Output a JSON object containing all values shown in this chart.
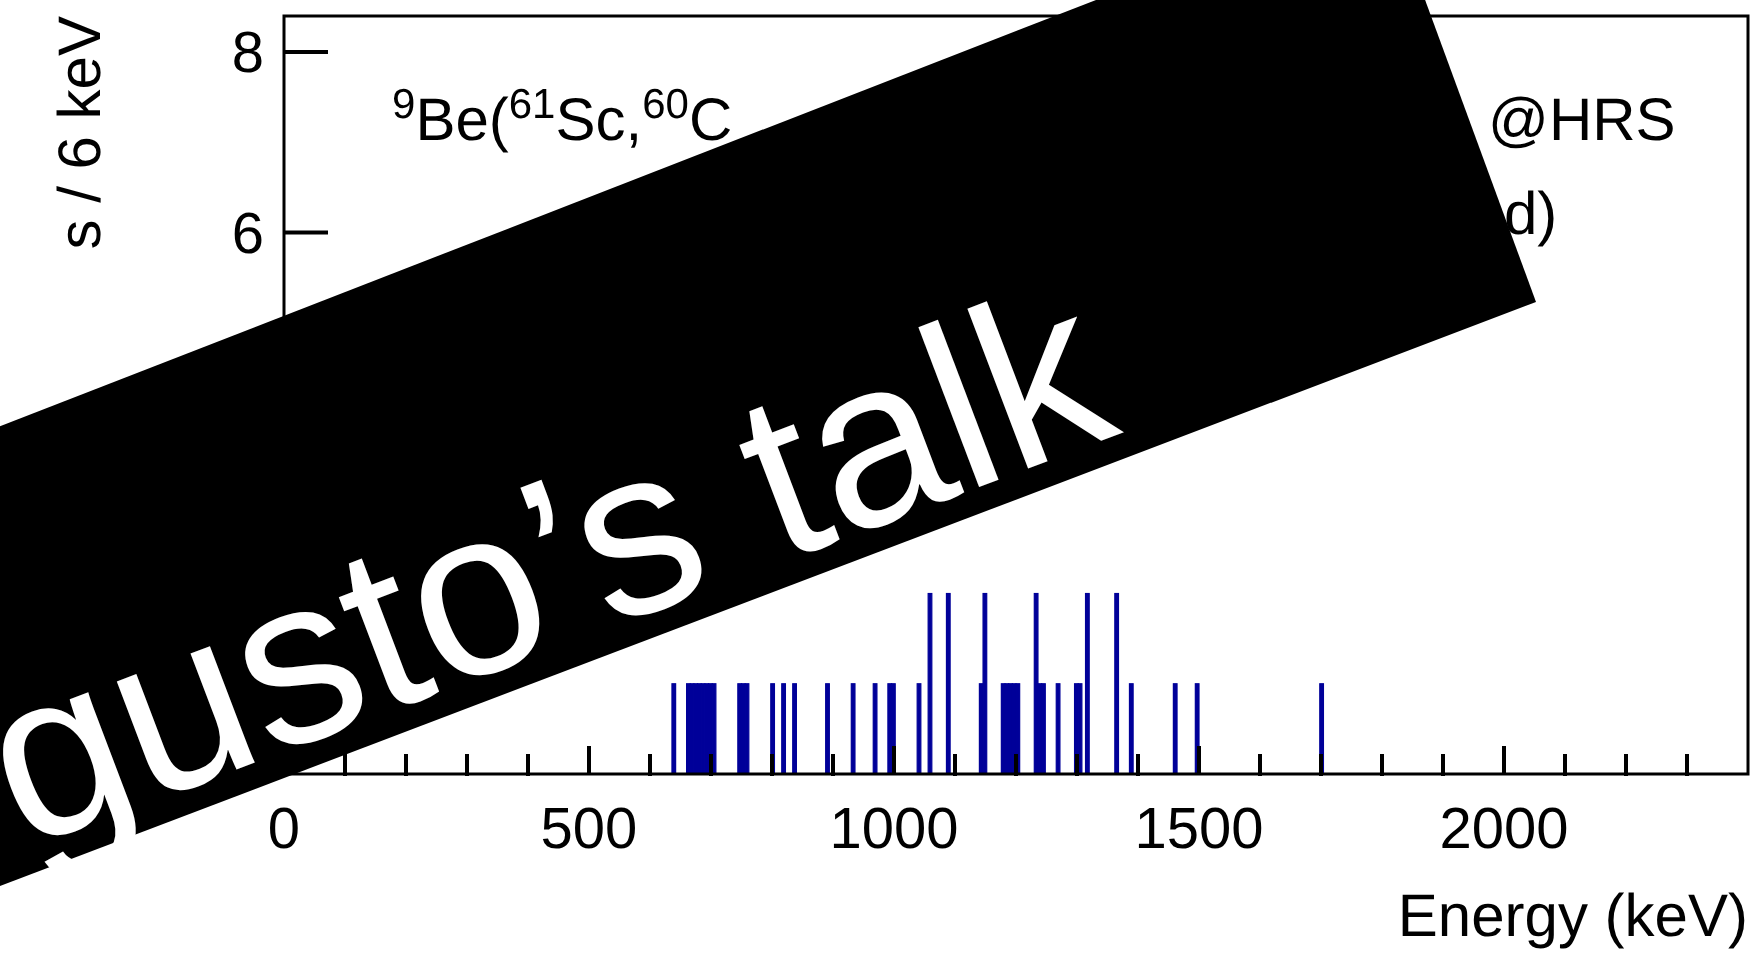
{
  "chart_data": {
    "type": "histogram",
    "title": "$^{9}$Be($^{61}$Sc,$^{60}$C",
    "ylabel": "s / 6 keV",
    "xlabel": "Energy (keV)",
    "annotations": [
      "@HRS",
      "d)",
      "gusto’s talk"
    ],
    "color": "#000099",
    "bins": [
      0,
      6,
      12,
      18,
      24,
      30,
      36,
      42,
      48,
      54,
      60,
      66,
      72,
      78,
      84,
      90,
      96,
      102,
      108,
      114,
      120,
      126,
      132,
      138,
      144,
      150,
      156,
      162,
      168,
      174,
      180,
      186,
      192,
      198,
      204,
      210,
      216,
      222,
      228,
      234,
      240,
      246,
      252,
      258,
      264,
      270,
      276,
      282,
      288,
      294,
      300,
      306,
      312,
      318,
      324,
      330,
      336,
      342,
      348,
      354,
      360,
      366,
      372,
      378,
      384,
      390,
      396,
      402,
      408,
      414,
      420,
      426,
      432,
      438,
      444,
      450,
      456,
      462,
      468,
      474,
      480,
      486,
      492,
      498,
      504,
      510,
      516,
      522,
      528,
      534,
      540,
      546,
      552,
      558,
      564,
      570,
      576,
      582,
      588,
      594,
      600,
      606,
      612,
      618,
      624,
      630,
      636,
      642,
      648,
      654,
      660,
      666,
      672,
      678,
      684,
      690,
      696,
      702,
      708,
      714,
      720,
      726,
      732,
      738,
      744,
      750,
      756,
      762,
      768,
      774,
      780,
      786,
      792,
      798,
      804,
      810,
      816,
      822,
      828,
      834,
      840,
      846,
      852,
      858,
      864,
      870,
      876,
      882,
      888,
      894,
      900,
      906,
      912,
      918,
      924,
      930,
      936,
      942,
      948,
      954,
      960,
      966,
      972,
      978,
      984,
      990,
      996,
      1002,
      1008,
      1014,
      1020,
      1026,
      1032,
      1038,
      1044,
      1050,
      1056,
      1062,
      1068,
      1074,
      1080,
      1086,
      1092,
      1098,
      1104,
      1110,
      1116,
      1122,
      1128,
      1134,
      1140,
      1146,
      1152,
      1158,
      1164,
      1170,
      1176,
      1182,
      1188,
      1194,
      1200,
      1206,
      1212,
      1218,
      1224,
      1230,
      1236,
      1242,
      1248,
      1254,
      1260,
      1266,
      1272,
      1278,
      1284,
      1290,
      1296,
      1302,
      1308,
      1314,
      1320,
      1326,
      1332,
      1338,
      1344,
      1350,
      1356,
      1362,
      1368,
      1374,
      1380,
      1386,
      1392,
      1398,
      1404,
      1410,
      1416,
      1422,
      1428,
      1434,
      1440,
      1446,
      1452,
      1458,
      1464,
      1470,
      1476,
      1482,
      1488,
      1494,
      1500,
      1506,
      1512,
      1518,
      1524,
      1530,
      1536,
      1542,
      1548,
      1554,
      1560,
      1566,
      1572,
      1578,
      1584,
      1590,
      1596,
      1602,
      1608,
      1614,
      1620,
      1626,
      1632,
      1638,
      1644,
      1650,
      1656,
      1662,
      1668,
      1674,
      1680,
      1686,
      1692,
      1698,
      1704,
      1710,
      1716,
      1722,
      1728,
      1734,
      1740,
      1746,
      1752,
      1758,
      1764,
      1770,
      1776,
      1782,
      1788,
      1794,
      1800,
      1806,
      1812,
      1818,
      1824,
      1830,
      1836,
      1842,
      1848,
      1854,
      1860,
      1866,
      1872,
      1878,
      1884,
      1890,
      1896,
      1902,
      1908,
      1914,
      1920,
      1926,
      1932,
      1938,
      1944,
      1950,
      1956,
      1962,
      1968,
      1974,
      1980,
      1986,
      1992,
      1998,
      2004,
      2010,
      2016,
      2022,
      2028,
      2034,
      2040,
      2046,
      2052,
      2058,
      2064,
      2070,
      2076,
      2082,
      2088,
      2094,
      2100,
      2106,
      2112,
      2118,
      2124,
      2130,
      2136,
      2142,
      2148,
      2154,
      2160,
      2166,
      2172,
      2178,
      2184,
      2190,
      2196,
      2202,
      2208,
      2214,
      2220,
      2226,
      2232,
      2238,
      2244,
      2250,
      2256,
      2262,
      2268,
      2274,
      2280,
      2286,
      2292,
      2298,
      2304,
      2310,
      2316,
      2322,
      2328,
      2334,
      2340,
      2346,
      2352,
      2358,
      2364,
      2370,
      2376,
      2382,
      2388,
      2394,
      2400
    ],
    "values": [
      0,
      0,
      0,
      0,
      0,
      0,
      null,
      0,
      0,
      0,
      0,
      0,
      0,
      0,
      0,
      0,
      0,
      0,
      0,
      0,
      0,
      0,
      0,
      0,
      0,
      0,
      0,
      0,
      0,
      0,
      0,
      0,
      null,
      0,
      0,
      null,
      0,
      0,
      null,
      0,
      0,
      0,
      0,
      0,
      0,
      0,
      0,
      0,
      0,
      null,
      0,
      0,
      null,
      0,
      0,
      0,
      null,
      0,
      0,
      0,
      null,
      0,
      0,
      0,
      null,
      0,
      0,
      0,
      0,
      null,
      null,
      null,
      null,
      null,
      null,
      null,
      null,
      0,
      0,
      0,
      null,
      0,
      0,
      0,
      null,
      0,
      0,
      0,
      0,
      null,
      0,
      0,
      null,
      0,
      0,
      0,
      null,
      0,
      0,
      0,
      0,
      0,
      0,
      null,
      0,
      0,
      1,
      0,
      0,
      0,
      1,
      1,
      1,
      1,
      1,
      1,
      1,
      1,
      0,
      0,
      0,
      0,
      0,
      null,
      1,
      1,
      1,
      0,
      0,
      0,
      0,
      0,
      0,
      1,
      0,
      0,
      1,
      0,
      0,
      1,
      0,
      0,
      0,
      0,
      0,
      0,
      0,
      0,
      1,
      0,
      0,
      0,
      0,
      null,
      0,
      1,
      0,
      0,
      0,
      0,
      0,
      1,
      0,
      0,
      0,
      1,
      1,
      0,
      0,
      0,
      0,
      0,
      0,
      1,
      0,
      0,
      2,
      0,
      0,
      0,
      0,
      2,
      0,
      0,
      0,
      0,
      0,
      0,
      0,
      0,
      1,
      2,
      0,
      0,
      null,
      0,
      1,
      1,
      1,
      1,
      1,
      0,
      0,
      0,
      0,
      2,
      1,
      1,
      0,
      0,
      0,
      1,
      0,
      0,
      0,
      0,
      1,
      1,
      0,
      2,
      0,
      0,
      null,
      null,
      null,
      null,
      null,
      2,
      0,
      0,
      0,
      1,
      0,
      0,
      0,
      0,
      0,
      0,
      0,
      0,
      0,
      0,
      0,
      1,
      0,
      0,
      0,
      0,
      0,
      1,
      0,
      0,
      0,
      0,
      0,
      0,
      0,
      0,
      0,
      0,
      0,
      0,
      0,
      0,
      0,
      0,
      0,
      0,
      0,
      0,
      0,
      0,
      0,
      0,
      0,
      0,
      0,
      0,
      0,
      0,
      0,
      0,
      0,
      1,
      0,
      0,
      0,
      0,
      0,
      0,
      0,
      0,
      0,
      0,
      0,
      0,
      0,
      0,
      0,
      0,
      0,
      0,
      0,
      0,
      0,
      0,
      0,
      0,
      0,
      0,
      0,
      0,
      0,
      0,
      0,
      0,
      0,
      0,
      0,
      0,
      0,
      0,
      0,
      0,
      0,
      0,
      0,
      0,
      0,
      0,
      0,
      0,
      0,
      0,
      0,
      0,
      0,
      0,
      0,
      0,
      0,
      0,
      0,
      0,
      0,
      0,
      0,
      0,
      0,
      0,
      0,
      0,
      0,
      0,
      0,
      0,
      0,
      0,
      0,
      0,
      0,
      0,
      0,
      0,
      0,
      0,
      0,
      0,
      0,
      0,
      0,
      0,
      0,
      0,
      0,
      0,
      0,
      0,
      0,
      0,
      0,
      0,
      0,
      0,
      0,
      0,
      0,
      0,
      0,
      0,
      0,
      0,
      0,
      0,
      0,
      0,
      0,
      0,
      0,
      0
    ],
    "xlim": [
      0,
      2400
    ],
    "xticks": [
      0,
      {
        "value": 100,
        "label": null
      },
      {
        "value": 200,
        "label": null
      },
      {
        "value": 300,
        "label": null
      },
      {
        "value": 400,
        "label": null
      },
      500,
      {
        "value": 600,
        "label": null
      },
      {
        "value": 700,
        "label": null
      },
      {
        "value": 800,
        "label": null
      },
      {
        "value": 900,
        "label": null
      },
      1000,
      {
        "value": 1100,
        "label": null
      },
      {
        "value": 1200,
        "label": null
      },
      {
        "value": 1300,
        "label": null
      },
      {
        "value": 1400,
        "label": null
      },
      1500,
      {
        "value": 1600,
        "label": null
      },
      {
        "value": 1700,
        "label": null
      },
      {
        "value": 1800,
        "label": null
      },
      {
        "value": 1900,
        "label": null
      },
      2000,
      {
        "value": 2100,
        "label": null
      },
      {
        "value": 2200,
        "label": null
      },
      {
        "value": 2300,
        "label": null
      }
    ],
    "ylim": [
      0,
      8.4
    ],
    "yticks": [
      6,
      8
    ]
  }
}
